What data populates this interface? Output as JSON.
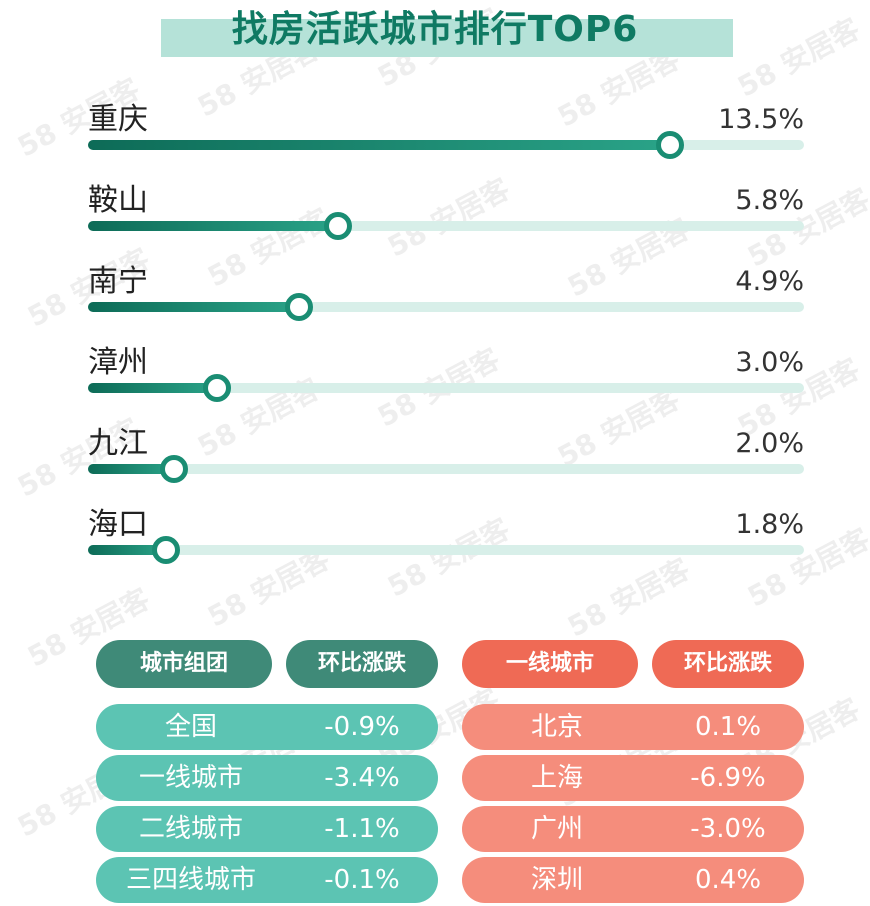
{
  "title": "找房活跃城市排行TOP6",
  "watermark": "58 安居客",
  "colors": {
    "teal_dark": "#3f8a78",
    "teal_light": "#5cc4b3",
    "coral_dark": "#ef6a55",
    "coral_light": "#f58d7c"
  },
  "chart_data": {
    "type": "bar",
    "title": "找房活跃城市排行TOP6",
    "categories": [
      "重庆",
      "鞍山",
      "南宁",
      "漳州",
      "九江",
      "海口"
    ],
    "values": [
      13.5,
      5.8,
      4.9,
      3.0,
      2.0,
      1.8
    ],
    "value_labels": [
      "13.5%",
      "5.8%",
      "4.9%",
      "3.0%",
      "2.0%",
      "1.8%"
    ],
    "unit": "%",
    "xlim": [
      0,
      16.6
    ],
    "orientation": "horizontal",
    "grid": false
  },
  "table_left": {
    "headers": [
      "城市组团",
      "环比涨跌"
    ],
    "rows": [
      {
        "label": "全国",
        "value": "-0.9%"
      },
      {
        "label": "一线城市",
        "value": "-3.4%"
      },
      {
        "label": "二线城市",
        "value": "-1.1%"
      },
      {
        "label": "三四线城市",
        "value": "-0.1%"
      }
    ]
  },
  "table_right": {
    "headers": [
      "一线城市",
      "环比涨跌"
    ],
    "rows": [
      {
        "label": "北京",
        "value": "0.1%"
      },
      {
        "label": "上海",
        "value": "-6.9%"
      },
      {
        "label": "广州",
        "value": "-3.0%"
      },
      {
        "label": "深圳",
        "value": "0.4%"
      }
    ]
  }
}
